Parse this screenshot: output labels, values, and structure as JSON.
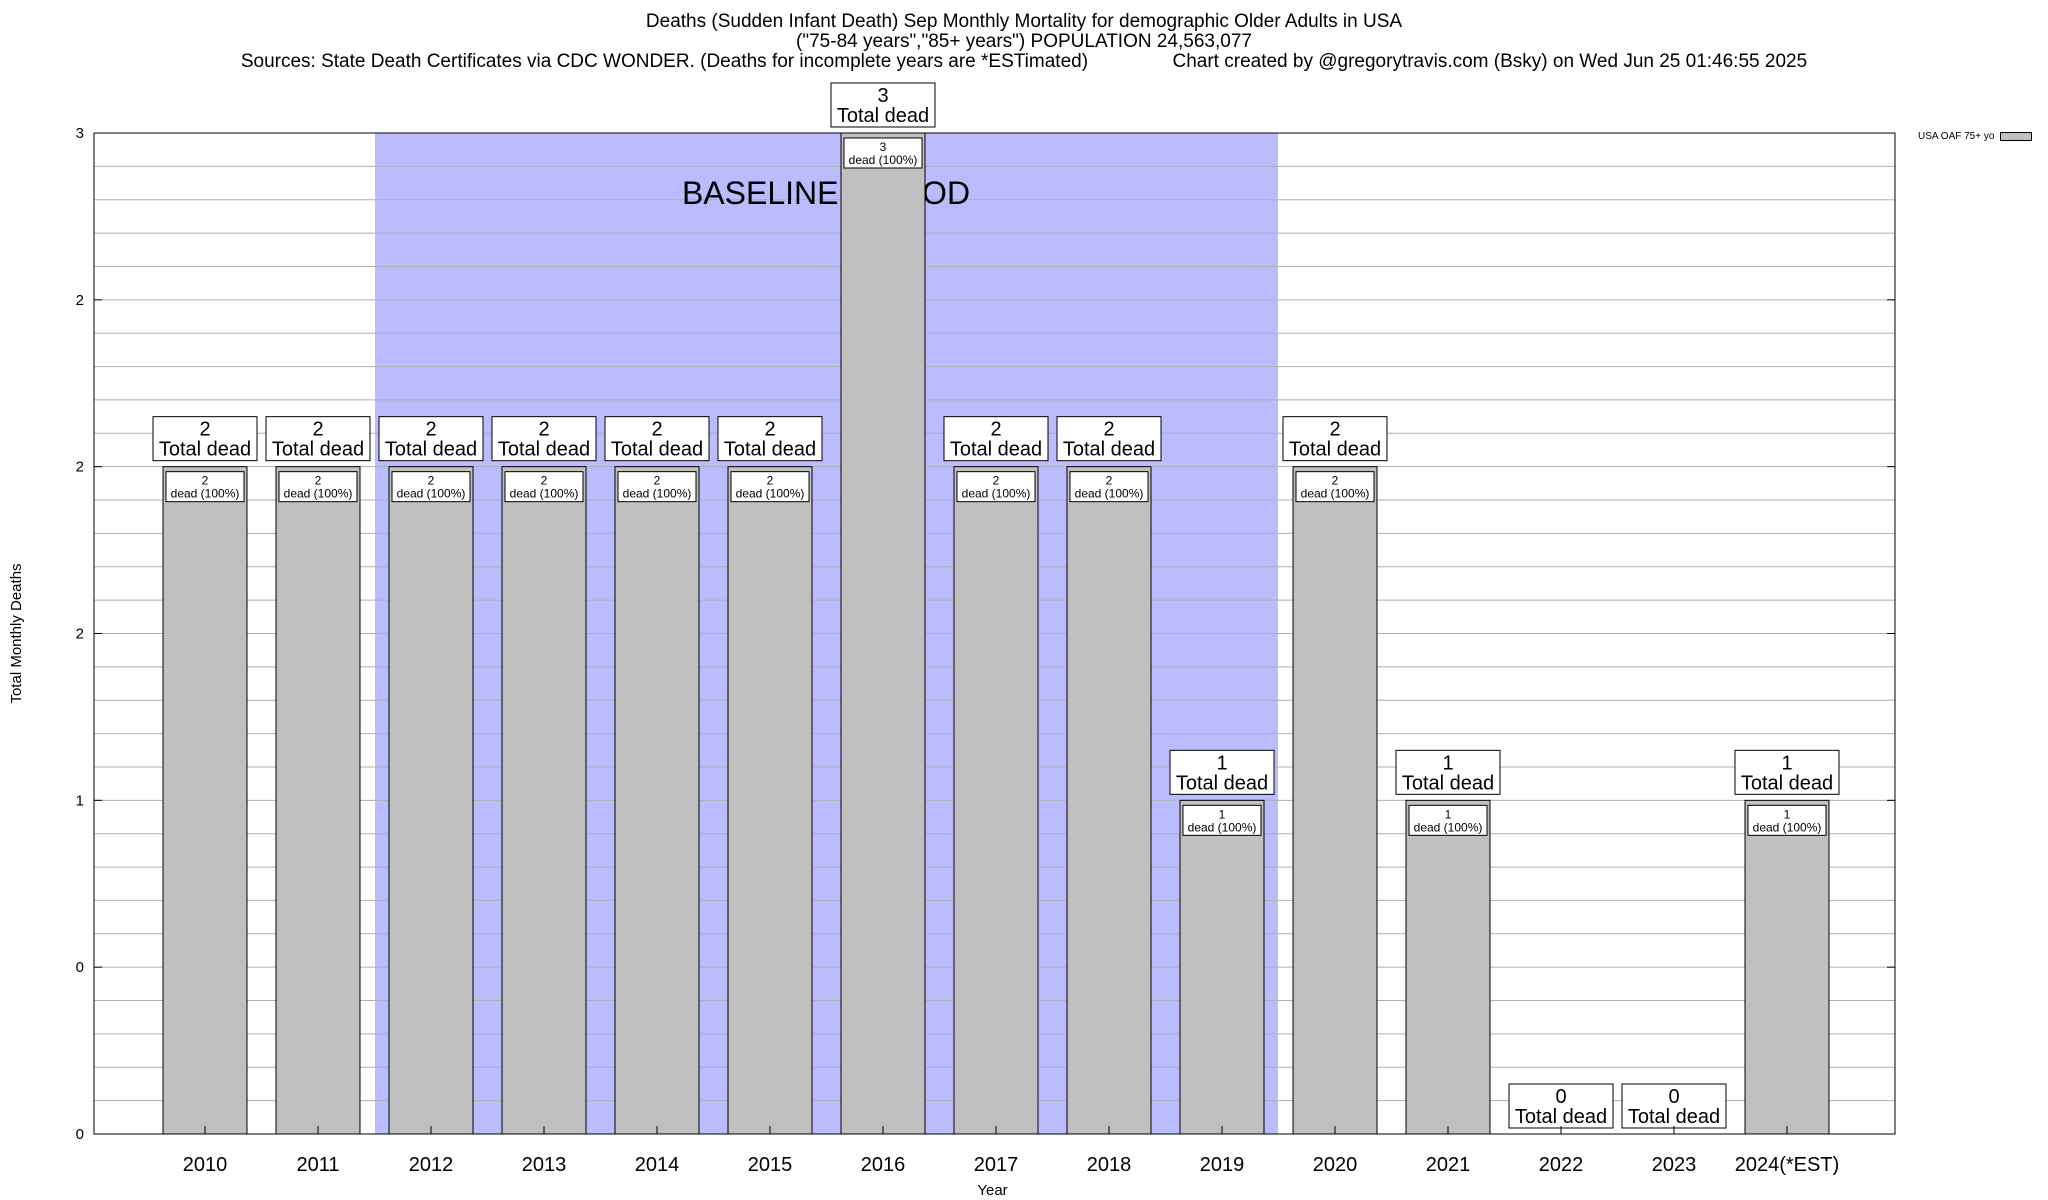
{
  "title": {
    "line1": "Deaths (Sudden Infant Death) Sep Monthly Mortality for demographic Older Adults in USA",
    "line2": "(\"75-84 years\",\"85+ years\") POPULATION 24,563,077",
    "line3": "Sources: State Death Certificates via CDC WONDER. (Deaths for incomplete years are *ESTimated)",
    "credit": "Chart created by @gregorytravis.com (Bsky) on Wed Jun 25 01:46:55 2025"
  },
  "legend": {
    "label": "USA OAF 75+ yo"
  },
  "chart_data": {
    "type": "bar",
    "categories": [
      "2010",
      "2011",
      "2012",
      "2013",
      "2014",
      "2015",
      "2016",
      "2017",
      "2018",
      "2019",
      "2020",
      "2021",
      "2022",
      "2023",
      "2024(*EST)"
    ],
    "values": [
      2,
      2,
      2,
      2,
      2,
      2,
      3,
      2,
      2,
      1,
      2,
      1,
      0,
      0,
      1
    ],
    "series": [
      {
        "name": "USA OAF 75+ yo",
        "values": [
          2,
          2,
          2,
          2,
          2,
          2,
          3,
          2,
          2,
          1,
          2,
          1,
          0,
          0,
          1
        ]
      }
    ],
    "xlabel": "Year",
    "ylabel": "Total Monthly Deaths",
    "ylim": [
      0,
      3
    ],
    "y_tick_labels": [
      "0",
      "0",
      "1",
      "2",
      "2",
      "2",
      "3"
    ],
    "baseline": {
      "label": "BASELINE PERIOD",
      "start": "2012",
      "end": "2019"
    },
    "total_label_suffix": "Total dead",
    "inner_label_suffix": "dead (100%)",
    "grid": true,
    "legend_position": "top-right",
    "colors": {
      "bar": "#c0c0c0",
      "baseline": "#bbbbff"
    }
  }
}
